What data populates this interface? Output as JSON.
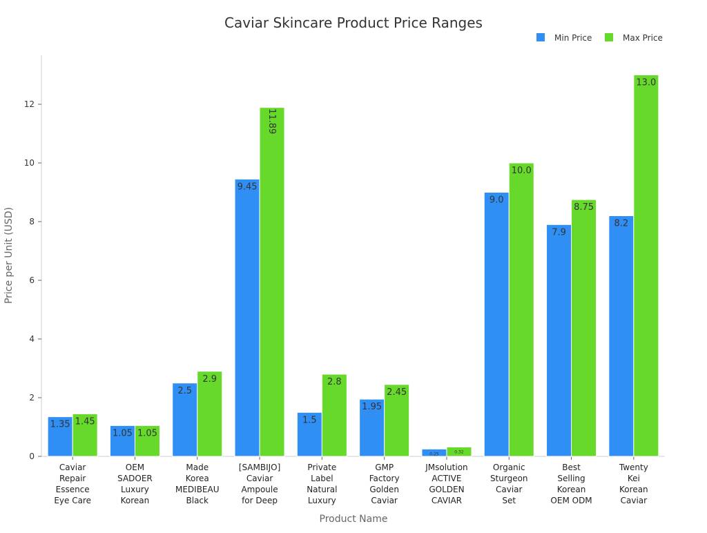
{
  "chart_data": {
    "type": "bar",
    "title": "Caviar Skincare Product Price Ranges",
    "xlabel": "Product Name",
    "ylabel": "Price per Unit (USD)",
    "ylim": [
      0,
      13.5
    ],
    "yticks": [
      0,
      2,
      4,
      6,
      8,
      10,
      12
    ],
    "grid": false,
    "legend_position": "top-right",
    "categories": [
      [
        "Caviar",
        "Repair",
        "Essence",
        "Eye Care"
      ],
      [
        "OEM",
        "SADOER",
        "Luxury",
        "Korean"
      ],
      [
        "Made",
        "Korea",
        "MEDIBEAU",
        "Black"
      ],
      [
        "[SAMBIJO]",
        "Caviar",
        "Ampoule",
        "for Deep"
      ],
      [
        "Private",
        "Label",
        "Natural",
        "Luxury"
      ],
      [
        "GMP",
        "Factory",
        "Golden",
        "Caviar"
      ],
      [
        "JMsolution",
        "ACTIVE",
        "GOLDEN",
        "CAVIAR"
      ],
      [
        "Organic",
        "Sturgeon",
        "Caviar",
        "Set"
      ],
      [
        "Best",
        "Selling",
        "Korean",
        "OEM ODM"
      ],
      [
        "Twenty",
        "Kei",
        "Korean",
        "Caviar"
      ]
    ],
    "series": [
      {
        "name": "Min Price",
        "color": "#2f8ff5",
        "values": [
          1.35,
          1.05,
          2.5,
          9.45,
          1.5,
          1.95,
          0.25,
          9.0,
          7.9,
          8.2
        ],
        "labels": [
          "1.35",
          "1.05",
          "2.5",
          "9.45",
          "1.5",
          "1.95",
          "0.25",
          "9.0",
          "7.9",
          "8.2"
        ]
      },
      {
        "name": "Max Price",
        "color": "#66d92a",
        "values": [
          1.45,
          1.05,
          2.9,
          11.89,
          2.8,
          2.45,
          0.32,
          10.0,
          8.75,
          13.0
        ],
        "labels": [
          "1.45",
          "1.05",
          "2.9",
          "11.89",
          "2.8",
          "2.45",
          "0.32",
          "10.0",
          "8.75",
          "13.0"
        ]
      }
    ]
  }
}
